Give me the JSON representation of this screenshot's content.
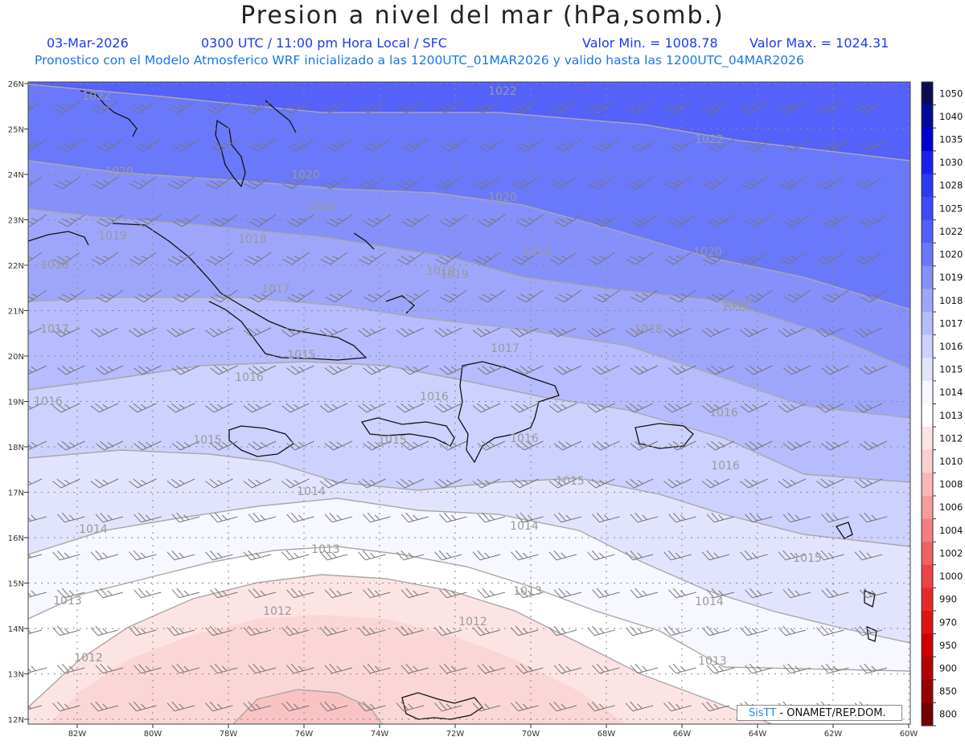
{
  "header": {
    "title": "Presion a nivel del mar (hPa,somb.)",
    "date": "03-Mar-2026",
    "time": "0300 UTC / 11:00 pm Hora Local / SFC",
    "min": "Valor Min. = 1008.78",
    "max": "Valor Max. = 1024.31",
    "model": "Pronostico con el Modelo Atmosferico WRF inicializado a las 1200UTC_01MAR2026 y valido hasta las  1200UTC_04MAR2026"
  },
  "lat_labels": [
    "26N",
    "25N",
    "24N",
    "23N",
    "22N",
    "21N",
    "20N",
    "19N",
    "18N",
    "17N",
    "16N",
    "15N",
    "14N",
    "13N",
    "12N"
  ],
  "lon_labels": [
    "82W",
    "80W",
    "78W",
    "76W",
    "74W",
    "72W",
    "70W",
    "68W",
    "66W",
    "64W",
    "62W",
    "60W"
  ],
  "colorbar": {
    "levels": [
      "1050",
      "1040",
      "1035",
      "1030",
      "1028",
      "1025",
      "1022",
      "1020",
      "1019",
      "1018",
      "1017",
      "1016",
      "1015",
      "1014",
      "1013",
      "1012",
      "1010",
      "1008",
      "1006",
      "1004",
      "1002",
      "1000",
      "990",
      "970",
      "950",
      "900",
      "850",
      "800"
    ],
    "colors": [
      "#0a0a55",
      "#000a9a",
      "#0000d2",
      "#1620f0",
      "#2a3af4",
      "#3b4bf8",
      "#5060fa",
      "#6a78fb",
      "#8590fb",
      "#9ea6fc",
      "#b6bcfd",
      "#cdd1fe",
      "#e2e4fe",
      "#f6f7ff",
      "#ffffff",
      "#fde4e4",
      "#fbcfcf",
      "#f8b6b6",
      "#f59c9c",
      "#f27f7f",
      "#ef6262",
      "#ec4545",
      "#e82828",
      "#e01212",
      "#d00000",
      "#b40000",
      "#960000",
      "#720000"
    ]
  },
  "isobar_labels": [
    {
      "text": "1022"
    },
    {
      "text": "1022"
    },
    {
      "text": "1022"
    },
    {
      "text": "1020"
    },
    {
      "text": "1020"
    },
    {
      "text": "1020"
    },
    {
      "text": "1020"
    },
    {
      "text": "1020"
    },
    {
      "text": "1019"
    },
    {
      "text": "1019"
    },
    {
      "text": "1019"
    },
    {
      "text": "1019"
    },
    {
      "text": "1018"
    },
    {
      "text": "1018"
    },
    {
      "text": "1018"
    },
    {
      "text": "1018"
    },
    {
      "text": "1017"
    },
    {
      "text": "1017"
    },
    {
      "text": "1017"
    },
    {
      "text": "1017"
    },
    {
      "text": "1016"
    },
    {
      "text": "1016"
    },
    {
      "text": "1016"
    },
    {
      "text": "1016"
    },
    {
      "text": "1016"
    },
    {
      "text": "1016"
    },
    {
      "text": "1015"
    },
    {
      "text": "1015"
    },
    {
      "text": "1015"
    },
    {
      "text": "1015"
    },
    {
      "text": "1015"
    },
    {
      "text": "1014"
    },
    {
      "text": "1014"
    },
    {
      "text": "1014"
    },
    {
      "text": "1014"
    },
    {
      "text": "1013"
    },
    {
      "text": "1013"
    },
    {
      "text": "1013"
    },
    {
      "text": "1013"
    },
    {
      "text": "1012"
    },
    {
      "text": "1012"
    },
    {
      "text": "1012"
    }
  ],
  "logo": {
    "sis": "SisTT",
    "rest": " - ONAMET/REP.DOM."
  }
}
